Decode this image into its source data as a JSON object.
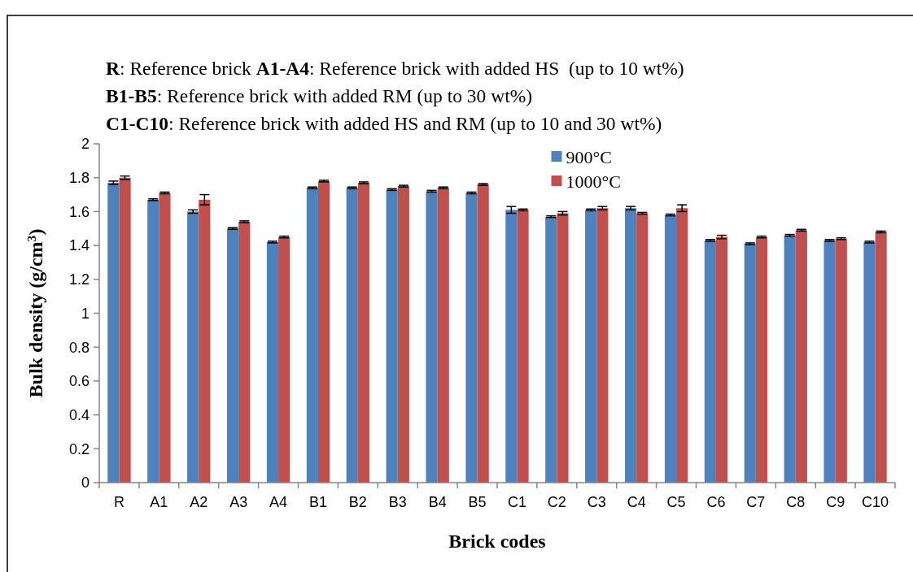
{
  "chart_data": {
    "type": "bar",
    "annotations": [
      "R: Reference brick A1-A4: Reference brick with added HS  (up to 10 wt%)",
      "B1-B5: Reference brick with added RM (up to 30 wt%)",
      "C1-C10: Reference brick with added HS and RM (up to 10 and 30 wt%)"
    ],
    "xlabel": "Brick codes",
    "ylabel": "Bulk density (g/cm$^{3}$)",
    "categories": [
      "R",
      "A1",
      "A2",
      "A3",
      "A4",
      "B1",
      "B2",
      "B3",
      "B4",
      "B5",
      "C1",
      "C2",
      "C3",
      "C4",
      "C5",
      "C6",
      "C7",
      "C8",
      "C9",
      "C10"
    ],
    "series": [
      {
        "name": "900°C",
        "color": "#4f81bd",
        "values": [
          1.77,
          1.67,
          1.6,
          1.5,
          1.42,
          1.74,
          1.74,
          1.73,
          1.72,
          1.71,
          1.61,
          1.57,
          1.61,
          1.62,
          1.58,
          1.43,
          1.41,
          1.46,
          1.43,
          1.42
        ],
        "errors": [
          0.01,
          0.005,
          0.01,
          0.005,
          0.005,
          0.005,
          0.005,
          0.005,
          0.005,
          0.005,
          0.02,
          0.005,
          0.005,
          0.01,
          0.005,
          0.005,
          0.005,
          0.005,
          0.005,
          0.005
        ]
      },
      {
        "name": "1000°C",
        "color": "#c0504d",
        "values": [
          1.8,
          1.71,
          1.67,
          1.54,
          1.45,
          1.78,
          1.77,
          1.75,
          1.74,
          1.76,
          1.61,
          1.59,
          1.62,
          1.59,
          1.62,
          1.45,
          1.45,
          1.49,
          1.44,
          1.48
        ],
        "errors": [
          0.01,
          0.005,
          0.03,
          0.005,
          0.005,
          0.005,
          0.005,
          0.005,
          0.005,
          0.005,
          0.005,
          0.01,
          0.01,
          0.005,
          0.02,
          0.01,
          0.005,
          0.005,
          0.005,
          0.005
        ]
      }
    ],
    "ylim": [
      0,
      2
    ],
    "yticks": [
      0,
      0.2,
      0.4,
      0.6,
      0.8,
      1,
      1.2,
      1.4,
      1.6,
      1.8,
      2
    ],
    "grid": false,
    "legend": "top right"
  }
}
